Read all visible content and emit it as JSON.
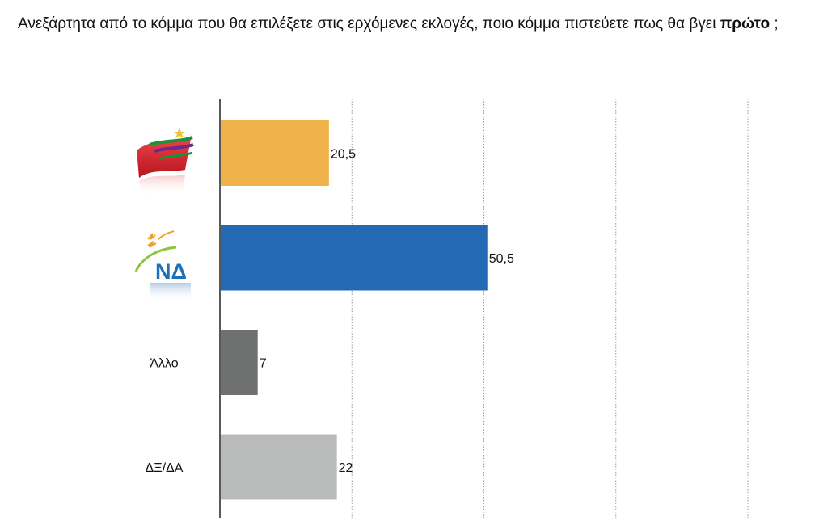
{
  "question": {
    "text_before": "Ανεξάρτητα από το κόμμα που θα επιλέξετε στις ερχόμενες εκλογές, ποιο κόμμα πιστεύετε πως θα βγει ",
    "text_bold": "πρώτο",
    "text_after": " ;"
  },
  "chart_data": {
    "type": "bar",
    "orientation": "horizontal",
    "categories": [
      "ΣΥΡΙΖΑ",
      "ΝΔ",
      "Άλλο",
      "ΔΞ/ΔΑ"
    ],
    "category_display": [
      "",
      "",
      "Άλλο",
      "ΔΞ/ΔΑ"
    ],
    "category_icons": [
      "syriza-logo-icon",
      "nd-logo-icon",
      "",
      ""
    ],
    "logo_text": {
      "nd": "ΝΔ"
    },
    "values": [
      20.5,
      50.5,
      7,
      22
    ],
    "value_labels": [
      "20,5",
      "50,5",
      "7",
      "22"
    ],
    "colors": [
      "#f0b24b",
      "#2469b3",
      "#6f7170",
      "#b9bbba"
    ],
    "xlim": [
      0,
      100
    ],
    "grid": "vertical dotted",
    "title": "",
    "xlabel": "",
    "ylabel": ""
  }
}
